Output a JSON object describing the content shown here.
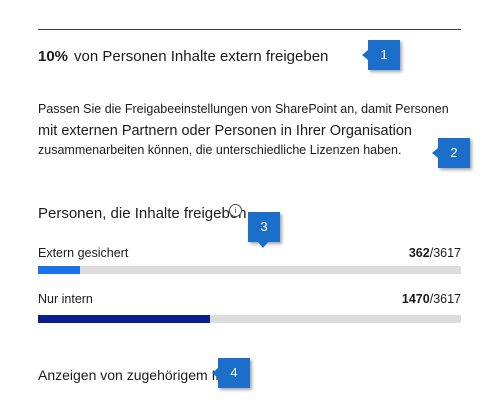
{
  "headline": {
    "percent": "10%",
    "text": "von Personen Inhalte extern freigeben"
  },
  "description": {
    "line1": "Passen Sie die Freigabeeinstellungen von SharePoint an, damit Personen",
    "line2": "mit externen Partnern oder Personen in Ihrer Organisation",
    "line3": "zusammenarbeiten können, die unterschiedliche Lizenzen haben."
  },
  "section": {
    "title": "Personen, die Inhalte freigeben",
    "info_icon": "i"
  },
  "stats": [
    {
      "label": "Extern gesichert",
      "value": "362",
      "total": "/3617",
      "fraction": 0.1,
      "color": "#1a73e8"
    },
    {
      "label": "Nur intern",
      "value": "1470",
      "total": "/3617",
      "fraction": 0.4064,
      "color": "#0a1f8f"
    }
  ],
  "related_link": "Anzeigen von zugehörigem Inhalt",
  "callouts": [
    "1",
    "2",
    "3",
    "4"
  ],
  "colors": {
    "callout": "#1b6ec9",
    "track": "#dcdcdc"
  }
}
